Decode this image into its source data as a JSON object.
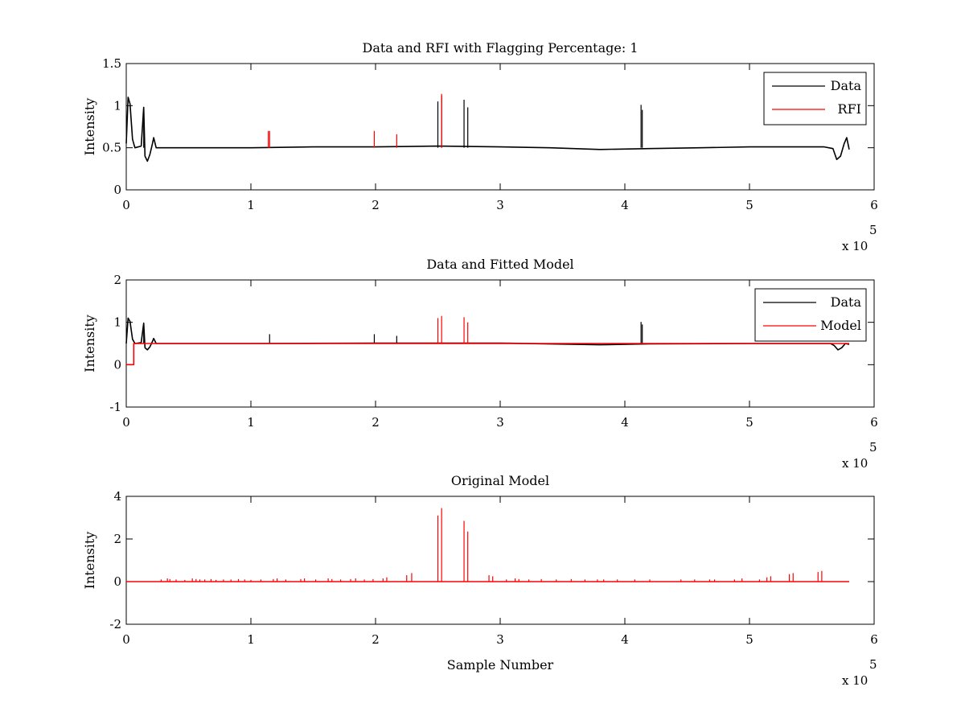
{
  "colors": {
    "data": "#000000",
    "red": "#ff0000",
    "axis": "#000000",
    "background": "#ffffff"
  },
  "chart_data": [
    {
      "type": "line",
      "title": "Data and RFI with Flagging Percentage: 1",
      "xlabel": "",
      "ylabel": "Intensity",
      "xlim": [
        0,
        600000
      ],
      "ylim": [
        0,
        1.5
      ],
      "xticks": [
        0,
        1,
        2,
        3,
        4,
        5,
        6
      ],
      "yticks": [
        "0",
        "0.5",
        "1",
        "1.5"
      ],
      "x_multiplier": "x 10",
      "x_multiplier_exp": "5",
      "grid": false,
      "legend_position": "top-right",
      "baseline": 0.5,
      "x_end": 580000,
      "series": [
        {
          "name": "Data",
          "color": "#000000",
          "points": [
            [
              0,
              0.55
            ],
            [
              1500,
              1.1
            ],
            [
              3000,
              1.02
            ],
            [
              5000,
              0.6
            ],
            [
              7000,
              0.5
            ],
            [
              12000,
              0.52
            ],
            [
              14000,
              0.98
            ],
            [
              15000,
              0.4
            ],
            [
              17000,
              0.34
            ],
            [
              19000,
              0.42
            ],
            [
              21000,
              0.55
            ],
            [
              22000,
              0.62
            ],
            [
              24000,
              0.5
            ],
            [
              50000,
              0.5
            ],
            [
              100000,
              0.5
            ],
            [
              150000,
              0.51
            ],
            [
              200000,
              0.51
            ],
            [
              250000,
              0.52
            ],
            [
              300000,
              0.51
            ],
            [
              340000,
              0.5
            ],
            [
              380000,
              0.48
            ],
            [
              420000,
              0.49
            ],
            [
              460000,
              0.5
            ],
            [
              500000,
              0.51
            ],
            [
              560000,
              0.51
            ],
            [
              567000,
              0.49
            ],
            [
              570000,
              0.36
            ],
            [
              573000,
              0.4
            ],
            [
              576000,
              0.55
            ],
            [
              578000,
              0.62
            ],
            [
              580000,
              0.48
            ]
          ],
          "spikes": [
            [
              14000,
              0.98
            ],
            [
              250000,
              1.05
            ],
            [
              253000,
              1.12
            ],
            [
              271000,
              1.07
            ],
            [
              274000,
              0.98
            ],
            [
              413000,
              1.01
            ],
            [
              414000,
              0.95
            ]
          ]
        },
        {
          "name": "RFI",
          "color": "#ff0000",
          "spikes": [
            [
              114000,
              0.7
            ],
            [
              115000,
              0.7
            ],
            [
              199000,
              0.7
            ],
            [
              217000,
              0.66
            ],
            [
              253000,
              1.14
            ]
          ]
        }
      ]
    },
    {
      "type": "line",
      "title": "Data and Fitted Model",
      "xlabel": "",
      "ylabel": "Intensity",
      "xlim": [
        0,
        600000
      ],
      "ylim": [
        -1,
        2
      ],
      "xticks": [
        0,
        1,
        2,
        3,
        4,
        5,
        6
      ],
      "yticks": [
        "-1",
        "0",
        "1",
        "2"
      ],
      "x_multiplier": "x 10",
      "x_multiplier_exp": "5",
      "grid": false,
      "legend_position": "top-right",
      "baseline": 0.5,
      "x_end": 580000,
      "series": [
        {
          "name": "Data",
          "color": "#000000",
          "points": [
            [
              0,
              0.5
            ],
            [
              1500,
              1.1
            ],
            [
              3000,
              1.02
            ],
            [
              5000,
              0.6
            ],
            [
              7000,
              0.5
            ],
            [
              12000,
              0.52
            ],
            [
              14000,
              0.98
            ],
            [
              15000,
              0.4
            ],
            [
              17000,
              0.35
            ],
            [
              19000,
              0.42
            ],
            [
              21000,
              0.55
            ],
            [
              22000,
              0.62
            ],
            [
              24000,
              0.5
            ],
            [
              100000,
              0.5
            ],
            [
              200000,
              0.51
            ],
            [
              300000,
              0.51
            ],
            [
              380000,
              0.47
            ],
            [
              420000,
              0.49
            ],
            [
              500000,
              0.5
            ],
            [
              565000,
              0.5
            ],
            [
              568000,
              0.45
            ],
            [
              571000,
              0.35
            ],
            [
              574000,
              0.4
            ],
            [
              577000,
              0.5
            ],
            [
              580000,
              0.48
            ]
          ],
          "spikes": [
            [
              14000,
              0.98
            ],
            [
              115000,
              0.72
            ],
            [
              199000,
              0.72
            ],
            [
              217000,
              0.68
            ],
            [
              413000,
              1.01
            ],
            [
              414000,
              0.95
            ]
          ]
        },
        {
          "name": "Model",
          "color": "#ff0000",
          "points": [
            [
              0,
              0.0
            ],
            [
              6000,
              0.0
            ],
            [
              6000,
              0.5
            ],
            [
              580000,
              0.5
            ]
          ],
          "spikes": [
            [
              250000,
              1.1
            ],
            [
              253000,
              1.15
            ],
            [
              271000,
              1.12
            ],
            [
              274000,
              1.0
            ]
          ]
        }
      ]
    },
    {
      "type": "line",
      "title": "Original Model",
      "xlabel": "Sample Number",
      "ylabel": "Intensity",
      "xlim": [
        0,
        600000
      ],
      "ylim": [
        -2,
        4
      ],
      "xticks": [
        0,
        1,
        2,
        3,
        4,
        5,
        6
      ],
      "yticks": [
        "-2",
        "0",
        "2",
        "4"
      ],
      "x_multiplier": "x 10",
      "x_multiplier_exp": "5",
      "grid": false,
      "baseline": 0.0,
      "x_end": 580000,
      "series": [
        {
          "color": "#ff0000",
          "points": [
            [
              0,
              0
            ],
            [
              580000,
              0
            ]
          ],
          "spikes": [
            [
              28000,
              0.1
            ],
            [
              33000,
              0.15
            ],
            [
              35000,
              0.12
            ],
            [
              40000,
              0.1
            ],
            [
              47000,
              0.08
            ],
            [
              53000,
              0.15
            ],
            [
              56000,
              0.12
            ],
            [
              59000,
              0.1
            ],
            [
              63000,
              0.1
            ],
            [
              68000,
              0.12
            ],
            [
              72000,
              0.08
            ],
            [
              78000,
              0.1
            ],
            [
              84000,
              0.1
            ],
            [
              90000,
              0.12
            ],
            [
              95000,
              0.1
            ],
            [
              100000,
              0.08
            ],
            [
              108000,
              0.1
            ],
            [
              118000,
              0.12
            ],
            [
              121000,
              0.15
            ],
            [
              128000,
              0.1
            ],
            [
              140000,
              0.12
            ],
            [
              143000,
              0.15
            ],
            [
              152000,
              0.1
            ],
            [
              162000,
              0.15
            ],
            [
              165000,
              0.12
            ],
            [
              172000,
              0.1
            ],
            [
              180000,
              0.12
            ],
            [
              184000,
              0.15
            ],
            [
              191000,
              0.1
            ],
            [
              198000,
              0.12
            ],
            [
              206000,
              0.15
            ],
            [
              209000,
              0.2
            ],
            [
              225000,
              0.3
            ],
            [
              229000,
              0.4
            ],
            [
              250000,
              3.1
            ],
            [
              253000,
              3.45
            ],
            [
              271000,
              2.85
            ],
            [
              274000,
              2.35
            ],
            [
              291000,
              0.3
            ],
            [
              294000,
              0.25
            ],
            [
              305000,
              0.1
            ],
            [
              312000,
              0.15
            ],
            [
              315000,
              0.12
            ],
            [
              323000,
              0.1
            ],
            [
              333000,
              0.12
            ],
            [
              345000,
              0.1
            ],
            [
              357000,
              0.12
            ],
            [
              368000,
              0.1
            ],
            [
              378000,
              0.1
            ],
            [
              383000,
              0.1
            ],
            [
              394000,
              0.1
            ],
            [
              408000,
              0.1
            ],
            [
              420000,
              0.1
            ],
            [
              445000,
              0.1
            ],
            [
              456000,
              0.1
            ],
            [
              468000,
              0.1
            ],
            [
              472000,
              0.1
            ],
            [
              488000,
              0.1
            ],
            [
              494000,
              0.15
            ],
            [
              508000,
              0.1
            ],
            [
              514000,
              0.2
            ],
            [
              517000,
              0.25
            ],
            [
              532000,
              0.35
            ],
            [
              535000,
              0.4
            ],
            [
              555000,
              0.45
            ],
            [
              558000,
              0.5
            ]
          ]
        }
      ]
    }
  ]
}
